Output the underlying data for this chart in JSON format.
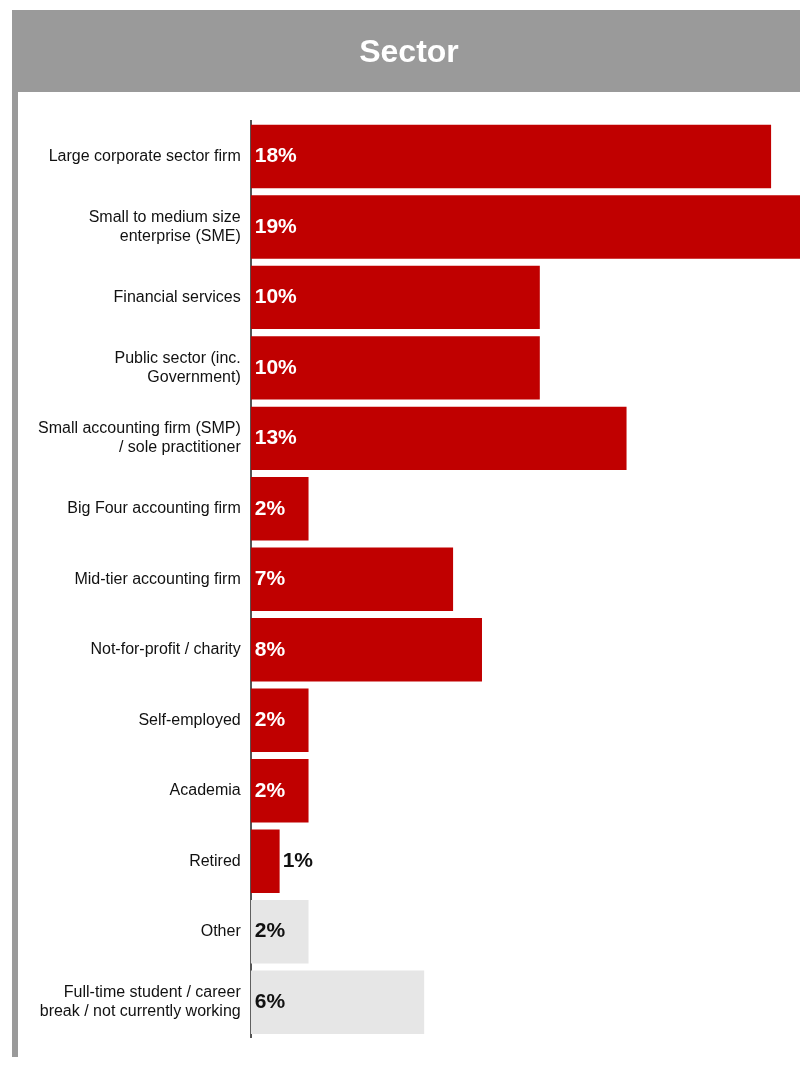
{
  "chart_data": {
    "type": "bar",
    "orientation": "horizontal",
    "title": "Sector",
    "value_labels": [
      "18%",
      "19%",
      "10%",
      "10%",
      "13%",
      "2%",
      "7%",
      "8%",
      "2%",
      "2%",
      "1%",
      "2%",
      "6%"
    ],
    "categories": [
      "Large corporate sector firm",
      "Small to medium size\nenterprise (SME)",
      "Financial services",
      "Public sector (inc.\nGovernment)",
      "Small accounting firm (SMP)\n/ sole practitioner",
      "Big Four accounting firm",
      "Mid-tier accounting firm",
      "Not-for-profit / charity",
      "Self-employed",
      "Academia",
      "Retired",
      "Other",
      "Full-time student / career\nbreak / not currently working"
    ],
    "values": [
      18,
      19,
      10,
      10,
      13,
      2,
      7,
      8,
      2,
      2,
      1,
      2,
      6
    ],
    "colors": [
      "#c00000",
      "#c00000",
      "#c00000",
      "#c00000",
      "#c00000",
      "#c00000",
      "#c00000",
      "#c00000",
      "#c00000",
      "#c00000",
      "#c00000",
      "#e6e6e6",
      "#e6e6e6"
    ]
  }
}
